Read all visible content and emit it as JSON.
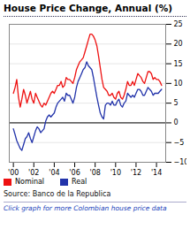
{
  "chart_data": {
    "type": "line",
    "title": "House Price Change, Annual (%)",
    "annotations": [
      "Source: Banco de la Republica",
      "Click graph for more Colombian house price data"
    ],
    "x": [
      2000.0,
      2000.17,
      2000.33,
      2000.5,
      2000.67,
      2000.83,
      2001.0,
      2001.17,
      2001.33,
      2001.5,
      2001.67,
      2001.83,
      2002.0,
      2002.17,
      2002.33,
      2002.5,
      2002.67,
      2002.83,
      2003.0,
      2003.17,
      2003.33,
      2003.5,
      2003.67,
      2003.83,
      2004.0,
      2004.17,
      2004.33,
      2004.5,
      2004.67,
      2004.83,
      2005.0,
      2005.17,
      2005.33,
      2005.5,
      2005.67,
      2005.83,
      2006.0,
      2006.17,
      2006.33,
      2006.5,
      2006.67,
      2006.83,
      2007.0,
      2007.17,
      2007.33,
      2007.5,
      2007.67,
      2007.83,
      2008.0,
      2008.17,
      2008.33,
      2008.5,
      2008.67,
      2008.83,
      2009.0,
      2009.17,
      2009.33,
      2009.5,
      2009.67,
      2009.83,
      2010.0,
      2010.17,
      2010.33,
      2010.5,
      2010.67,
      2010.83,
      2011.0,
      2011.17,
      2011.33,
      2011.5,
      2011.67,
      2011.83,
      2012.0,
      2012.17,
      2012.33,
      2012.5,
      2012.67,
      2012.83,
      2013.0,
      2013.17,
      2013.33,
      2013.5,
      2013.67,
      2013.83,
      2014.0,
      2014.17,
      2014.33,
      2014.5
    ],
    "series": [
      {
        "name": "Nominal",
        "color": "#ee1111",
        "values": [
          7.5,
          9.0,
          11.0,
          6.5,
          4.0,
          6.0,
          8.5,
          7.0,
          5.0,
          6.5,
          8.0,
          6.0,
          5.0,
          7.5,
          6.5,
          5.5,
          4.5,
          4.0,
          5.0,
          4.5,
          5.5,
          6.5,
          7.5,
          8.0,
          7.5,
          8.5,
          9.5,
          9.5,
          10.5,
          9.0,
          9.5,
          11.5,
          11.0,
          11.0,
          10.5,
          10.0,
          11.5,
          13.5,
          14.5,
          15.5,
          16.0,
          16.5,
          18.0,
          19.5,
          21.0,
          22.5,
          22.5,
          22.0,
          21.0,
          19.5,
          17.0,
          14.0,
          11.0,
          9.0,
          8.5,
          8.0,
          7.0,
          7.0,
          7.5,
          6.5,
          6.0,
          7.5,
          8.0,
          6.5,
          6.0,
          7.0,
          8.5,
          10.5,
          9.5,
          9.5,
          10.5,
          9.5,
          11.0,
          12.5,
          12.0,
          11.5,
          10.5,
          10.0,
          11.5,
          13.0,
          13.0,
          12.5,
          11.0,
          11.5,
          11.0,
          11.0,
          10.5,
          9.5
        ]
      },
      {
        "name": "Real",
        "color": "#2233aa",
        "values": [
          -1.5,
          -3.0,
          -4.5,
          -5.5,
          -6.5,
          -7.0,
          -5.5,
          -4.0,
          -3.5,
          -2.5,
          -4.0,
          -5.0,
          -3.5,
          -2.0,
          -1.0,
          -1.5,
          -2.5,
          -2.0,
          -1.5,
          0.5,
          1.5,
          2.0,
          1.5,
          2.0,
          2.5,
          4.0,
          5.0,
          5.5,
          6.0,
          6.5,
          5.5,
          7.5,
          7.0,
          7.0,
          6.0,
          5.0,
          6.5,
          9.0,
          10.5,
          11.5,
          12.5,
          13.5,
          14.0,
          15.5,
          14.5,
          14.0,
          13.5,
          11.5,
          9.0,
          6.5,
          4.5,
          2.5,
          1.5,
          1.0,
          4.5,
          5.0,
          5.0,
          4.5,
          5.5,
          4.5,
          4.5,
          5.5,
          6.0,
          4.5,
          4.0,
          5.0,
          5.5,
          7.5,
          7.0,
          6.5,
          7.0,
          6.5,
          7.5,
          8.5,
          8.5,
          8.0,
          7.0,
          7.0,
          8.0,
          9.0,
          8.5,
          8.0,
          7.0,
          7.5,
          7.5,
          7.5,
          8.0,
          8.5
        ]
      }
    ],
    "xlim": [
      1999.6,
      2014.9
    ],
    "xticks": [
      {
        "value": 2000,
        "label": "'00"
      },
      {
        "value": 2002,
        "label": "'02"
      },
      {
        "value": 2004,
        "label": "'04"
      },
      {
        "value": 2006,
        "label": "'06"
      },
      {
        "value": 2008,
        "label": "'08"
      },
      {
        "value": 2010,
        "label": "'10"
      },
      {
        "value": 2012,
        "label": "'12"
      },
      {
        "value": 2014,
        "label": "'14"
      }
    ],
    "ylim": [
      -10,
      25
    ],
    "yticks": [
      -10,
      -5,
      0,
      5,
      10,
      15,
      20,
      25
    ],
    "grid": true,
    "legend": "bottom"
  }
}
